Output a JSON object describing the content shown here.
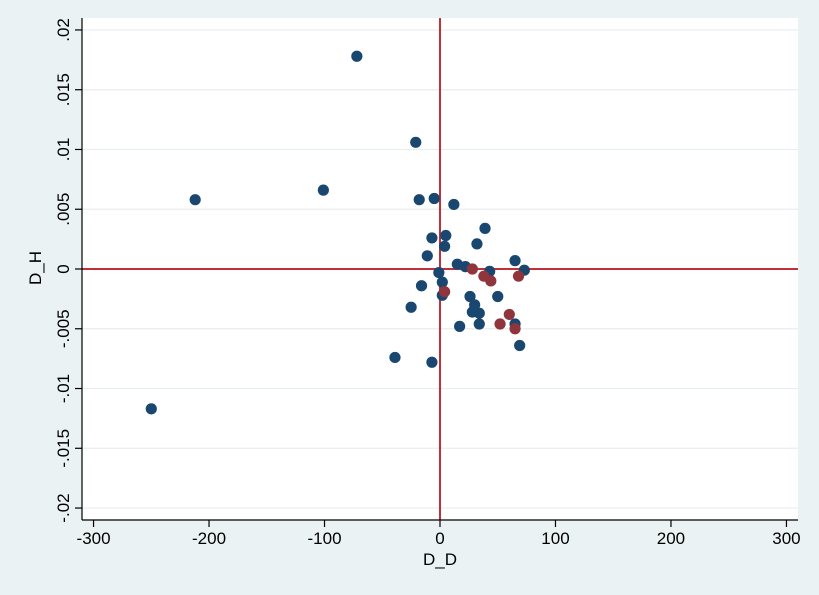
{
  "chart_data": {
    "type": "scatter",
    "title": "",
    "xlabel": "D_D",
    "ylabel": "D_H",
    "xlim": [
      -310,
      310
    ],
    "ylim": [
      -0.021,
      0.021
    ],
    "xticks": [
      -300,
      -200,
      -100,
      0,
      100,
      200,
      300
    ],
    "xtick_labels": [
      "-300",
      "-200",
      "-100",
      "0",
      "100",
      "200",
      "300"
    ],
    "yticks": [
      0.02,
      0.015,
      0.01,
      0.005,
      0,
      -0.005,
      -0.01,
      -0.015,
      -0.02
    ],
    "ytick_labels": [
      ".02",
      ".015",
      ".01",
      ".005",
      "0",
      "-.005",
      "-.01",
      "-.015",
      "-.02"
    ],
    "grid": true,
    "reference_lines": {
      "x": 0,
      "y": 0,
      "color": "#c0303a"
    },
    "series": [
      {
        "color": "#1a476f",
        "points": [
          [
            -72,
            0.0178
          ],
          [
            -21,
            0.0106
          ],
          [
            -212,
            0.0058
          ],
          [
            -101,
            0.0066
          ],
          [
            -18,
            0.0058
          ],
          [
            -5,
            0.0059
          ],
          [
            12,
            0.0054
          ],
          [
            -7,
            0.0026
          ],
          [
            5,
            0.0028
          ],
          [
            4,
            0.0019
          ],
          [
            32,
            0.0021
          ],
          [
            39,
            0.0034
          ],
          [
            -11,
            0.0011
          ],
          [
            15,
            0.0004
          ],
          [
            22,
            0.0002
          ],
          [
            -1,
            -0.0003
          ],
          [
            43,
            -0.0002
          ],
          [
            65,
            0.0007
          ],
          [
            73,
            -0.0001
          ],
          [
            -16,
            -0.0014
          ],
          [
            2,
            -0.0011
          ],
          [
            2,
            -0.0022
          ],
          [
            26,
            -0.0023
          ],
          [
            50,
            -0.0023
          ],
          [
            30,
            -0.003
          ],
          [
            -25,
            -0.0032
          ],
          [
            28,
            -0.0036
          ],
          [
            34,
            -0.0037
          ],
          [
            17,
            -0.0048
          ],
          [
            34,
            -0.0046
          ],
          [
            65,
            -0.0046
          ],
          [
            69,
            -0.0064
          ],
          [
            -39,
            -0.0074
          ],
          [
            -7,
            -0.0078
          ],
          [
            -250,
            -0.0117
          ]
        ]
      },
      {
        "color": "#90353b",
        "points": [
          [
            28,
            0.0
          ],
          [
            38,
            -0.0006
          ],
          [
            44,
            -0.001
          ],
          [
            68,
            -0.0006
          ],
          [
            4,
            -0.0019
          ],
          [
            60,
            -0.0038
          ],
          [
            52,
            -0.0046
          ],
          [
            65,
            -0.005
          ]
        ]
      }
    ]
  }
}
